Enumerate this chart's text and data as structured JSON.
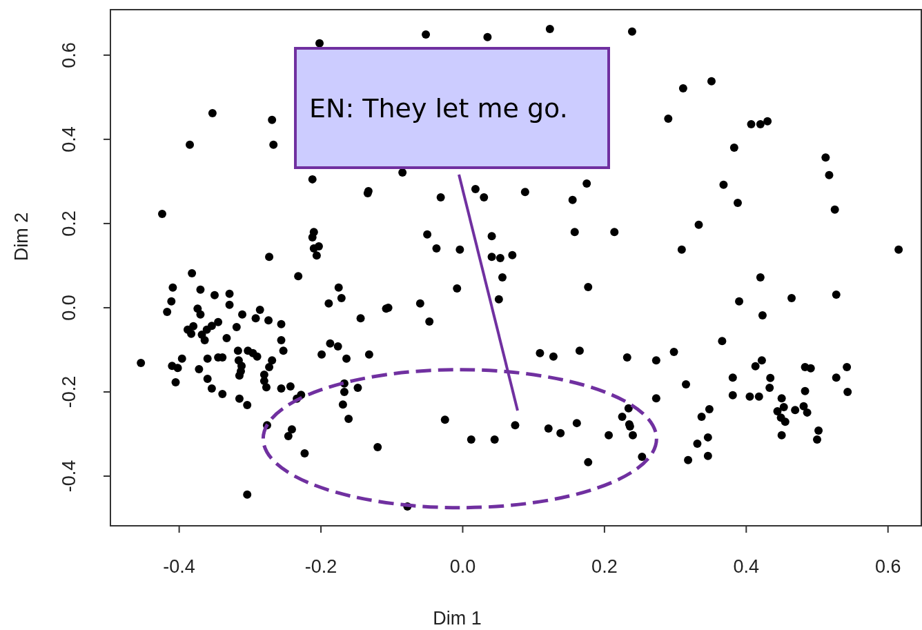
{
  "chart_data": {
    "type": "scatter",
    "xlabel": "Dim 1",
    "ylabel": "Dim 2",
    "marker": "circle",
    "xlim": [
      -0.497,
      0.647
    ],
    "ylim": [
      -0.518,
      0.708
    ],
    "xticks": [
      -0.4,
      -0.2,
      {
        "value": 0,
        "label": "0.0"
      },
      0.2,
      0.4,
      0.6
    ],
    "yticks": [
      -0.4,
      -0.2,
      {
        "value": 0,
        "label": "0.0"
      },
      0.2,
      0.4,
      0.6
    ],
    "annotations": [
      "EN: They let me go."
    ],
    "series": [
      {
        "color": "#000000",
        "x": [
          -0.202,
          -0.052,
          0.035,
          0.123,
          0.239,
          -0.353,
          -0.269,
          -0.385,
          -0.267,
          -0.212,
          -0.134,
          -0.133,
          -0.424,
          -0.085,
          0.018,
          0.03,
          -0.031,
          0.088,
          0.175,
          0.155,
          0.158,
          0.214,
          0.041,
          -0.05,
          -0.037,
          -0.004,
          0.041,
          0.053,
          0.07,
          0.056,
          0.051,
          -0.008,
          0.177,
          -0.21,
          -0.212,
          -0.21,
          -0.203,
          -0.206,
          -0.273,
          0.311,
          0.351,
          0.29,
          0.407,
          0.42,
          0.43,
          0.383,
          0.512,
          0.517,
          0.368,
          0.388,
          0.333,
          0.525,
          0.309,
          0.615,
          -0.382,
          -0.232,
          -0.409,
          -0.37,
          -0.35,
          -0.329,
          -0.411,
          -0.329,
          -0.417,
          -0.374,
          -0.37,
          -0.311,
          -0.286,
          -0.292,
          -0.274,
          -0.256,
          -0.175,
          -0.171,
          -0.189,
          -0.144,
          -0.108,
          -0.319,
          -0.388,
          -0.383,
          -0.38,
          -0.345,
          -0.354,
          -0.361,
          -0.368,
          -0.364,
          -0.333,
          -0.256,
          -0.253,
          -0.317,
          -0.303,
          -0.296,
          -0.29,
          -0.316,
          -0.312,
          -0.313,
          -0.315,
          -0.396,
          -0.41,
          -0.402,
          -0.454,
          -0.36,
          -0.345,
          -0.339,
          -0.372,
          -0.405,
          -0.36,
          -0.354,
          -0.339,
          -0.315,
          -0.304,
          -0.269,
          -0.273,
          -0.28,
          -0.28,
          -0.277,
          -0.256,
          -0.243,
          -0.228,
          -0.234,
          -0.276,
          -0.241,
          -0.246,
          -0.223,
          -0.304,
          -0.199,
          -0.187,
          -0.176,
          -0.164,
          -0.132,
          -0.167,
          -0.148,
          -0.167,
          -0.169,
          -0.161,
          -0.12,
          -0.105,
          -0.06,
          -0.047,
          0.109,
          0.128,
          0.165,
          0.232,
          0.273,
          0.273,
          0.234,
          0.225,
          0.235,
          0.236,
          0.24,
          0.206,
          0.253,
          0.177,
          -0.025,
          0.012,
          0.045,
          0.074,
          0.121,
          0.138,
          0.161,
          -0.078,
          0.42,
          0.39,
          0.464,
          0.527,
          0.423,
          0.366,
          0.298,
          0.315,
          0.348,
          0.337,
          0.346,
          0.331,
          0.346,
          0.318,
          0.381,
          0.381,
          0.405,
          0.418,
          0.413,
          0.422,
          0.434,
          0.433,
          0.45,
          0.453,
          0.444,
          0.449,
          0.455,
          0.45,
          0.469,
          0.481,
          0.486,
          0.483,
          0.491,
          0.483,
          0.502,
          0.5,
          0.527,
          0.542,
          0.543
        ],
        "values": [
          0.628,
          0.649,
          0.643,
          0.662,
          0.656,
          0.462,
          0.446,
          0.387,
          0.387,
          0.305,
          0.272,
          0.277,
          0.223,
          0.321,
          0.282,
          0.262,
          0.262,
          0.275,
          0.295,
          0.256,
          0.18,
          0.18,
          0.17,
          0.174,
          0.141,
          0.138,
          0.121,
          0.118,
          0.125,
          0.072,
          0.02,
          0.046,
          0.049,
          0.18,
          0.167,
          0.141,
          0.146,
          0.124,
          0.121,
          0.521,
          0.538,
          0.449,
          0.436,
          0.436,
          0.443,
          0.38,
          0.357,
          0.315,
          0.292,
          0.249,
          0.197,
          0.233,
          0.138,
          0.138,
          0.082,
          0.075,
          0.048,
          0.043,
          0.03,
          0.033,
          0.015,
          0.007,
          -0.01,
          -0.002,
          -0.016,
          -0.016,
          -0.005,
          -0.025,
          -0.03,
          -0.039,
          0.048,
          0.023,
          0.01,
          -0.025,
          -0.002,
          -0.046,
          -0.052,
          -0.062,
          -0.044,
          -0.034,
          -0.043,
          -0.052,
          -0.064,
          -0.077,
          -0.072,
          -0.077,
          -0.102,
          -0.102,
          -0.102,
          -0.108,
          -0.116,
          -0.125,
          -0.138,
          -0.151,
          -0.161,
          -0.121,
          -0.138,
          -0.143,
          -0.131,
          -0.121,
          -0.118,
          -0.118,
          -0.146,
          -0.177,
          -0.169,
          -0.192,
          -0.205,
          -0.216,
          -0.231,
          -0.125,
          -0.141,
          -0.159,
          -0.174,
          -0.189,
          -0.192,
          -0.187,
          -0.207,
          -0.216,
          -0.279,
          -0.289,
          -0.305,
          -0.346,
          -0.444,
          -0.111,
          -0.085,
          -0.092,
          -0.121,
          -0.111,
          -0.18,
          -0.19,
          -0.2,
          -0.23,
          -0.264,
          -0.331,
          0.0,
          0.01,
          -0.033,
          -0.108,
          -0.116,
          -0.102,
          -0.118,
          -0.125,
          -0.215,
          -0.239,
          -0.259,
          -0.277,
          -0.282,
          -0.303,
          -0.303,
          -0.354,
          -0.367,
          -0.266,
          -0.313,
          -0.313,
          -0.279,
          -0.287,
          -0.298,
          -0.274,
          -0.472,
          0.072,
          0.015,
          0.023,
          0.031,
          -0.018,
          -0.079,
          -0.105,
          -0.182,
          -0.241,
          -0.259,
          -0.308,
          -0.323,
          -0.352,
          -0.362,
          -0.166,
          -0.208,
          -0.211,
          -0.211,
          -0.139,
          -0.125,
          -0.167,
          -0.19,
          -0.215,
          -0.236,
          -0.246,
          -0.261,
          -0.271,
          -0.303,
          -0.243,
          -0.234,
          -0.249,
          -0.141,
          -0.144,
          -0.198,
          -0.292,
          -0.313,
          -0.166,
          -0.141,
          -0.2
        ]
      }
    ]
  }
}
